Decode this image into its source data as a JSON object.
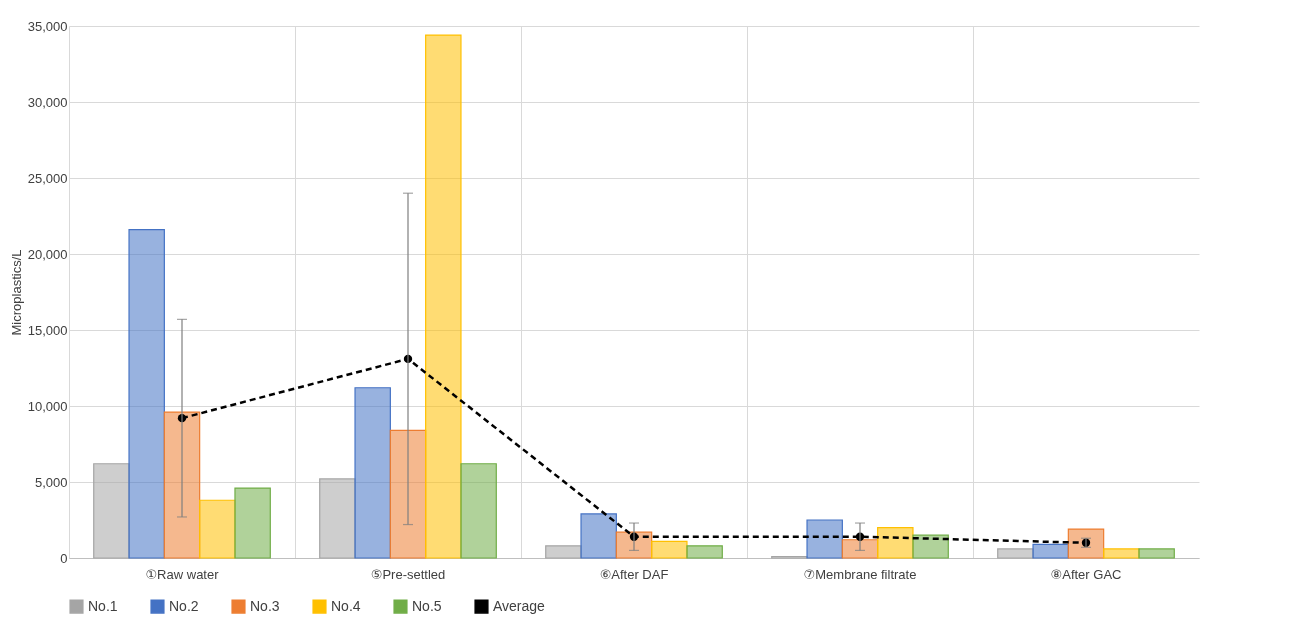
{
  "chart_data": {
    "type": "bar",
    "ylabel": "Microplastics/L",
    "categories": [
      "①Raw water",
      "⑤Pre-settled",
      "⑥After DAF",
      "⑦Membrane filtrate",
      "⑧After GAC"
    ],
    "series": [
      {
        "name": "No.1",
        "color": "#a5a5a5",
        "values": [
          6200,
          5200,
          800,
          100,
          600
        ]
      },
      {
        "name": "No.2",
        "color": "#4472c4",
        "values": [
          21600,
          11200,
          2900,
          2500,
          900
        ]
      },
      {
        "name": "No.3",
        "color": "#ed7d31",
        "values": [
          9600,
          8400,
          1700,
          1200,
          1900
        ]
      },
      {
        "name": "No.4",
        "color": "#ffc000",
        "values": [
          3800,
          34400,
          1100,
          2000,
          600
        ]
      },
      {
        "name": "No.5",
        "color": "#70ad47",
        "values": [
          4600,
          6200,
          800,
          1500,
          600
        ]
      },
      {
        "name": "Average",
        "type": "line",
        "color": "#000000",
        "marker": "circle",
        "line_style": "dashed",
        "values": [
          9200,
          13100,
          1400,
          1400,
          1000
        ],
        "errors": [
          6500,
          10900,
          900,
          900,
          300
        ]
      }
    ],
    "ylim": [
      0,
      35000
    ],
    "yticks": [
      0,
      {
        "value": 5000,
        "label": "5,000"
      },
      {
        "value": 10000,
        "label": "10,000"
      },
      {
        "value": 15000,
        "label": "15,000"
      },
      {
        "value": 20000,
        "label": "20,000"
      },
      {
        "value": 25000,
        "label": "25,000"
      },
      {
        "value": 30000,
        "label": "30,000"
      },
      {
        "value": 35000,
        "label": "35,000"
      }
    ],
    "grid": true,
    "legend": "bottom"
  }
}
